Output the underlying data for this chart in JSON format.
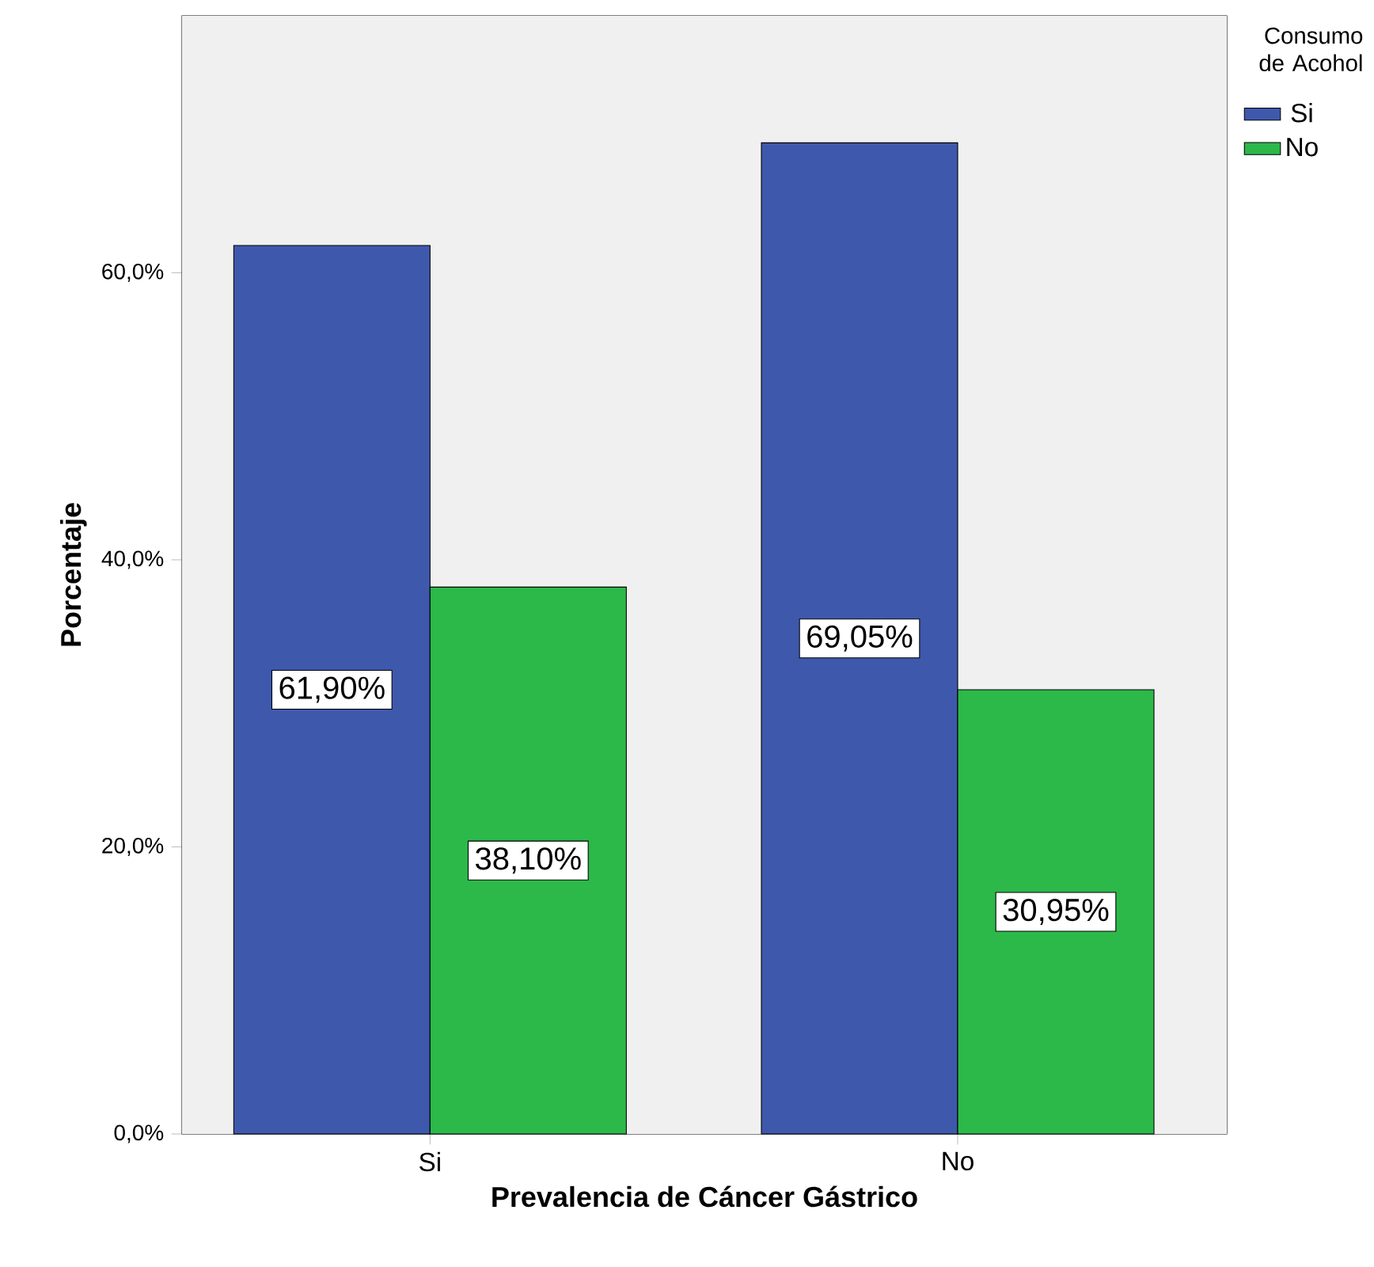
{
  "chart_data": {
    "type": "bar",
    "xlabel": "Prevalencia de Cáncer Gástrico",
    "ylabel": "Porcentaje",
    "legend_title": "Consumo de Acohol",
    "categories": [
      "Si",
      "No"
    ],
    "series": [
      {
        "name": "Si",
        "color": "#3e58ac",
        "values": [
          61.9,
          69.05
        ],
        "value_labels": [
          "61,90%",
          "69,05%"
        ]
      },
      {
        "name": "No",
        "color": "#2db84a",
        "values": [
          38.1,
          30.95
        ],
        "value_labels": [
          "38,10%",
          "30,95%"
        ]
      }
    ],
    "ylim": [
      0,
      77.9
    ],
    "yticks": [
      {
        "value": 0,
        "label": "0,0%"
      },
      {
        "value": 20,
        "label": "20,0%"
      },
      {
        "value": 40,
        "label": "40,0%"
      },
      {
        "value": 60,
        "label": "60,0%"
      }
    ],
    "grid": false,
    "legend": "top right"
  }
}
